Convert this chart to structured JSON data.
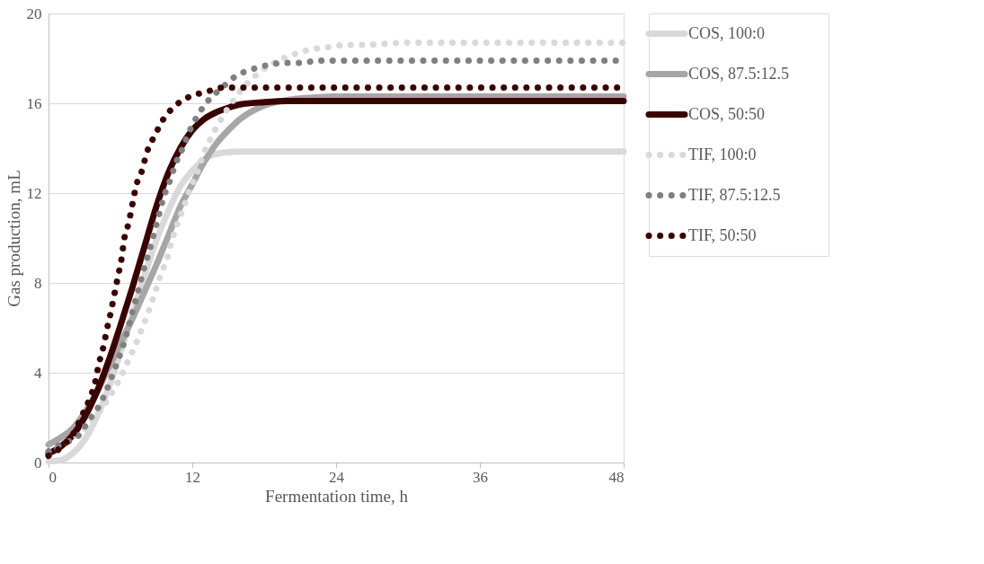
{
  "chart_data": {
    "type": "line",
    "xlabel": "Fermentation time, h",
    "ylabel": "Gas production, mL",
    "xlim": [
      0,
      48
    ],
    "xticks": [
      0,
      12,
      24,
      36,
      48
    ],
    "ylim": [
      0,
      20
    ],
    "yticks": [
      0,
      4,
      8,
      12,
      16,
      20
    ],
    "grid": "y",
    "legend": "right",
    "series": [
      {
        "name": "COS, 100:0",
        "color": "#d9d9d9",
        "line_style": "solid",
        "x": [
          0,
          1,
          2,
          3,
          4,
          5,
          6,
          7,
          8,
          9,
          10,
          11,
          12,
          13,
          14,
          16,
          20,
          24,
          32,
          40,
          48
        ],
        "values": [
          0.05,
          0.1,
          0.4,
          1.0,
          2.0,
          3.3,
          4.9,
          6.6,
          8.3,
          9.9,
          11.2,
          12.3,
          13.0,
          13.5,
          13.75,
          13.85,
          13.85,
          13.85,
          13.85,
          13.85,
          13.85
        ]
      },
      {
        "name": "COS, 87.5:12.5",
        "color": "#a6a6a6",
        "line_style": "solid",
        "x": [
          0,
          1,
          2,
          3,
          4,
          5,
          6,
          7,
          8,
          9,
          10,
          11,
          12,
          13,
          14,
          15,
          16,
          18,
          20,
          22,
          24,
          32,
          40,
          48
        ],
        "values": [
          0.8,
          1.1,
          1.5,
          2.2,
          3.1,
          4.2,
          5.3,
          6.4,
          7.6,
          8.8,
          10.1,
          11.4,
          12.4,
          13.4,
          14.2,
          14.8,
          15.3,
          15.9,
          16.15,
          16.25,
          16.3,
          16.3,
          16.3,
          16.3
        ]
      },
      {
        "name": "COS, 50:50",
        "color": "#3b0000",
        "line_style": "solid",
        "x": [
          0,
          1,
          2,
          3,
          4,
          5,
          6,
          7,
          8,
          9,
          10,
          11,
          12,
          13,
          14,
          15,
          16,
          18,
          20,
          24,
          32,
          40,
          48
        ],
        "values": [
          0.4,
          0.7,
          1.2,
          2.0,
          3.1,
          4.5,
          6.1,
          7.8,
          9.6,
          11.4,
          12.9,
          14.0,
          14.8,
          15.3,
          15.6,
          15.8,
          15.95,
          16.05,
          16.1,
          16.1,
          16.1,
          16.1,
          16.1
        ]
      },
      {
        "name": "TIF, 100:0",
        "color": "#d9d9d9",
        "line_style": "dotted",
        "x": [
          0,
          1.5,
          3,
          4.3,
          5.4,
          6.1,
          6.7,
          7.3,
          7.9,
          8.4,
          8.9,
          9.4,
          9.9,
          10.3,
          10.8,
          11.3,
          11.8,
          12.4,
          12.9,
          13.5,
          14.2,
          15.0,
          15.8,
          16.8,
          17.9,
          19.2,
          20.6,
          21.9,
          23.4,
          24.8,
          26.1,
          30,
          36,
          42,
          48
        ],
        "values": [
          0.3,
          0.9,
          1.5,
          2.3,
          3.2,
          3.9,
          4.6,
          5.3,
          6.1,
          6.8,
          7.6,
          8.4,
          9.1,
          9.9,
          10.7,
          11.4,
          12.2,
          12.9,
          13.7,
          14.4,
          15.1,
          15.8,
          16.4,
          17.0,
          17.5,
          17.9,
          18.2,
          18.4,
          18.5,
          18.6,
          18.6,
          18.7,
          18.7,
          18.7,
          18.7
        ]
      },
      {
        "name": "TIF, 87.5:12.5",
        "color": "#808080",
        "line_style": "dotted",
        "x": [
          0,
          1,
          2.5,
          3.4,
          4.2,
          4.9,
          5.4,
          5.9,
          6.4,
          6.8,
          7.2,
          7.6,
          8.0,
          8.4,
          8.8,
          9.2,
          9.6,
          10.1,
          10.6,
          11.2,
          11.8,
          12.5,
          13.3,
          14.5,
          15.6,
          16.9,
          18.3,
          19.7,
          21.1,
          22.5,
          26,
          32,
          40,
          48
        ],
        "values": [
          0.5,
          0.8,
          1.2,
          1.9,
          2.5,
          3.3,
          4.0,
          4.7,
          5.5,
          6.3,
          7.1,
          7.9,
          8.7,
          9.4,
          10.2,
          11.0,
          11.8,
          12.5,
          13.3,
          14.0,
          14.8,
          15.5,
          16.1,
          16.7,
          17.2,
          17.5,
          17.7,
          17.8,
          17.8,
          17.9,
          17.9,
          17.9,
          17.9,
          17.9
        ]
      },
      {
        "name": "TIF, 50:50",
        "color": "#3b0000",
        "line_style": "dotted",
        "x": [
          0,
          1.3,
          2.2,
          2.8,
          3.4,
          3.9,
          4.2,
          4.6,
          4.9,
          5.2,
          5.5,
          5.8,
          6.1,
          6.3,
          6.7,
          7.0,
          7.3,
          7.8,
          8.2,
          8.9,
          9.6,
          10.6,
          11.8,
          13.1,
          14.6,
          16,
          20,
          24,
          32,
          40,
          48
        ],
        "values": [
          0.3,
          0.8,
          1.4,
          2.1,
          2.8,
          3.6,
          4.4,
          5.2,
          6.0,
          6.7,
          7.5,
          8.3,
          9.1,
          9.9,
          10.7,
          11.5,
          12.3,
          13.0,
          13.8,
          14.6,
          15.3,
          15.9,
          16.3,
          16.5,
          16.7,
          16.7,
          16.7,
          16.7,
          16.7,
          16.7,
          16.7
        ]
      }
    ]
  }
}
